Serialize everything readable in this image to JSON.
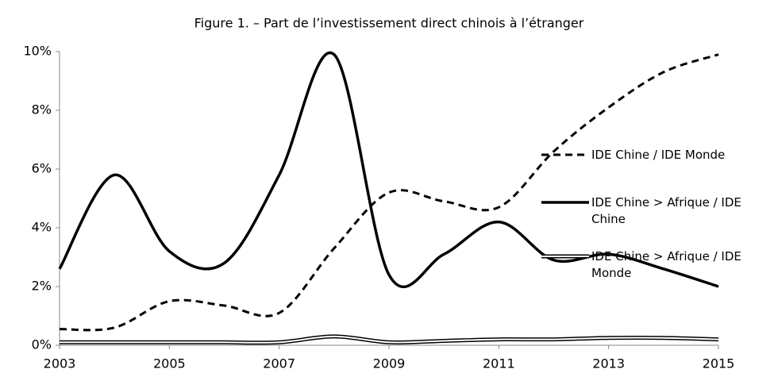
{
  "chart_data": {
    "type": "line",
    "title": "Figure 1. – Part de l’investissement direct chinois à l’étranger",
    "x": [
      2003,
      2004,
      2005,
      2006,
      2007,
      2008,
      2009,
      2010,
      2011,
      2012,
      2013,
      2014,
      2015
    ],
    "series": [
      {
        "name": "IDE Chine / IDE Monde",
        "color": "#000000",
        "style": "dashed",
        "values": [
          0.55,
          0.6,
          1.5,
          1.35,
          1.1,
          3.3,
          5.2,
          4.9,
          4.7,
          6.6,
          8.1,
          9.3,
          9.9
        ]
      },
      {
        "name": "IDE Chine > Afrique / IDE Chine",
        "color": "#000000",
        "style": "solid",
        "values": [
          2.6,
          5.8,
          3.2,
          2.8,
          5.8,
          9.9,
          2.4,
          3.1,
          4.2,
          2.9,
          3.1,
          2.6,
          2.0
        ]
      },
      {
        "name": "IDE Chine > Afrique / IDE Monde",
        "color": "#000000",
        "style": "double",
        "values": [
          0.1,
          0.1,
          0.1,
          0.1,
          0.1,
          0.3,
          0.1,
          0.15,
          0.2,
          0.2,
          0.25,
          0.25,
          0.2
        ]
      }
    ],
    "xlim": [
      2003,
      2015
    ],
    "xticks": [
      2003,
      2005,
      2007,
      2009,
      2011,
      2013,
      2015
    ],
    "ylim": [
      0,
      10
    ],
    "yticks": [
      {
        "value": 0,
        "label": "0%"
      },
      {
        "value": 2,
        "label": "2%"
      },
      {
        "value": 4,
        "label": "4%"
      },
      {
        "value": 6,
        "label": "6%"
      },
      {
        "value": 8,
        "label": "8%"
      },
      {
        "value": 10,
        "label": "10%"
      }
    ],
    "grid": false,
    "legend": "right"
  }
}
